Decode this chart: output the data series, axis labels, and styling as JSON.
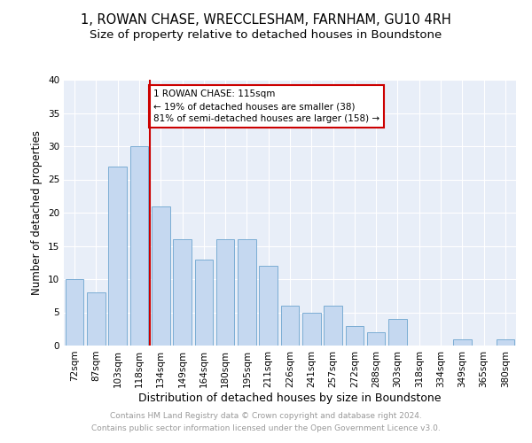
{
  "title": "1, ROWAN CHASE, WRECCLESHAM, FARNHAM, GU10 4RH",
  "subtitle": "Size of property relative to detached houses in Boundstone",
  "xlabel": "Distribution of detached houses by size in Boundstone",
  "ylabel": "Number of detached properties",
  "categories": [
    "72sqm",
    "87sqm",
    "103sqm",
    "118sqm",
    "134sqm",
    "149sqm",
    "164sqm",
    "180sqm",
    "195sqm",
    "211sqm",
    "226sqm",
    "241sqm",
    "257sqm",
    "272sqm",
    "288sqm",
    "303sqm",
    "318sqm",
    "334sqm",
    "349sqm",
    "365sqm",
    "380sqm"
  ],
  "values": [
    10,
    8,
    27,
    30,
    21,
    16,
    13,
    16,
    16,
    12,
    6,
    5,
    6,
    3,
    2,
    4,
    0,
    0,
    1,
    0,
    1
  ],
  "bar_color": "#c5d8f0",
  "bar_edge_color": "#7badd4",
  "vline_x": 3.5,
  "vline_color": "#cc0000",
  "annotation_text": "1 ROWAN CHASE: 115sqm\n← 19% of detached houses are smaller (38)\n81% of semi-detached houses are larger (158) →",
  "annotation_box_color": "#ffffff",
  "annotation_box_edge_color": "#cc0000",
  "background_color": "#e8eef8",
  "grid_color": "#ffffff",
  "footer_text": "Contains HM Land Registry data © Crown copyright and database right 2024.\nContains public sector information licensed under the Open Government Licence v3.0.",
  "ylim": [
    0,
    40
  ],
  "title_fontsize": 10.5,
  "subtitle_fontsize": 9.5,
  "xlabel_fontsize": 9,
  "ylabel_fontsize": 8.5,
  "tick_fontsize": 7.5,
  "footer_fontsize": 6.5,
  "annot_fontsize": 7.5
}
